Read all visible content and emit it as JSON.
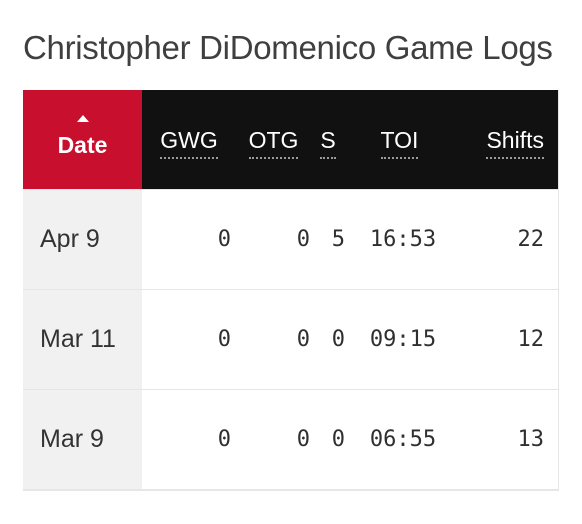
{
  "title": "Christopher DiDomenico Game Logs",
  "colors": {
    "header_bg": "#111111",
    "sorted_header_bg": "#c8102e",
    "date_column_bg": "#f1f1f1",
    "text": "#333333"
  },
  "table": {
    "headers": {
      "date": "Date",
      "gwg": "GWG",
      "otg": "OTG",
      "s": "S",
      "toi": "TOI",
      "shifts": "Shifts"
    },
    "sort": {
      "column": "date",
      "direction": "ascending",
      "icon": "sort-up-icon"
    },
    "rows": [
      {
        "date": "Apr 9",
        "gwg": "0",
        "otg": "0",
        "s": "5",
        "toi": "16:53",
        "shifts": "22"
      },
      {
        "date": "Mar 11",
        "gwg": "0",
        "otg": "0",
        "s": "0",
        "toi": "09:15",
        "shifts": "12"
      },
      {
        "date": "Mar 9",
        "gwg": "0",
        "otg": "0",
        "s": "0",
        "toi": "06:55",
        "shifts": "13"
      }
    ]
  }
}
